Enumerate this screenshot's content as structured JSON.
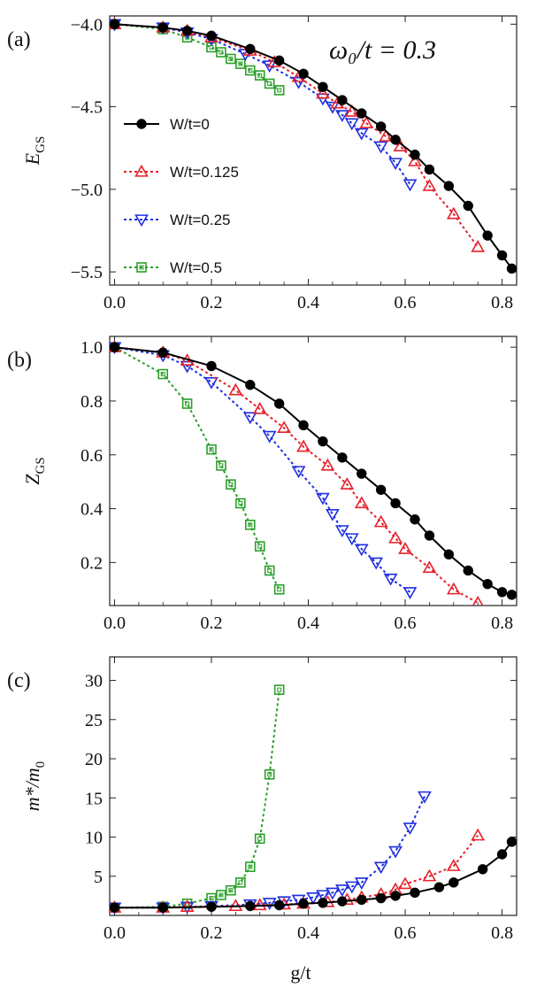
{
  "figure": {
    "xlabel": "g/t",
    "annotation": "ω₀/t = 0.3",
    "x_ticks": [
      0.0,
      0.2,
      0.4,
      0.6,
      0.8
    ],
    "x_tick_labels": [
      "0.0",
      "0.2",
      "0.4",
      "0.6",
      "0.8"
    ]
  },
  "series_styles": [
    {
      "name": "W/t=0",
      "color": "#000000",
      "marker": "circle",
      "dash": "solid"
    },
    {
      "name": "W/t=0.125",
      "color": "#e8202a",
      "marker": "triangle-up",
      "dash": "dotted"
    },
    {
      "name": "W/t=0.25",
      "color": "#1f2fe0",
      "marker": "triangle-down",
      "dash": "dotted"
    },
    {
      "name": "W/t=0.5",
      "color": "#2aa02a",
      "marker": "square",
      "dash": "dotted"
    }
  ],
  "chart_data": [
    {
      "type": "line",
      "panel_label": "(a)",
      "ylabel": "E",
      "ylabel_sub": "GS",
      "xlim": [
        -0.01,
        0.83
      ],
      "ylim": [
        -5.58,
        -3.95
      ],
      "y_ticks": [
        -4.0,
        -4.5,
        -5.0,
        -5.5
      ],
      "y_tick_labels": [
        "−4.0",
        "−4.5",
        "−5.0",
        "−5.5"
      ],
      "legend": [
        "W/t=0",
        "W/t=0.125",
        "W/t=0.25",
        "W/t=0.5"
      ],
      "series": [
        {
          "name": "W/t=0",
          "x": [
            0.0,
            0.1,
            0.15,
            0.2,
            0.28,
            0.34,
            0.39,
            0.43,
            0.47,
            0.51,
            0.55,
            0.58,
            0.62,
            0.65,
            0.69,
            0.73,
            0.77,
            0.8,
            0.82
          ],
          "y": [
            -4.0,
            -4.02,
            -4.04,
            -4.07,
            -4.15,
            -4.22,
            -4.3,
            -4.38,
            -4.46,
            -4.54,
            -4.62,
            -4.7,
            -4.79,
            -4.88,
            -4.98,
            -5.1,
            -5.28,
            -5.4,
            -5.48
          ]
        },
        {
          "name": "W/t=0.125",
          "x": [
            0.0,
            0.1,
            0.15,
            0.2,
            0.28,
            0.33,
            0.38,
            0.43,
            0.46,
            0.49,
            0.52,
            0.56,
            0.59,
            0.62,
            0.65,
            0.7,
            0.75
          ],
          "y": [
            -4.0,
            -4.02,
            -4.04,
            -4.08,
            -4.16,
            -4.23,
            -4.32,
            -4.42,
            -4.48,
            -4.53,
            -4.6,
            -4.68,
            -4.74,
            -4.83,
            -4.98,
            -5.15,
            -5.35
          ]
        },
        {
          "name": "W/t=0.25",
          "x": [
            0.0,
            0.1,
            0.15,
            0.2,
            0.27,
            0.32,
            0.38,
            0.43,
            0.45,
            0.47,
            0.49,
            0.51,
            0.55,
            0.58,
            0.61
          ],
          "y": [
            -4.0,
            -4.02,
            -4.05,
            -4.09,
            -4.18,
            -4.25,
            -4.35,
            -4.45,
            -4.5,
            -4.55,
            -4.6,
            -4.66,
            -4.74,
            -4.84,
            -4.97
          ]
        },
        {
          "name": "W/t=0.5",
          "x": [
            0.0,
            0.1,
            0.15,
            0.2,
            0.22,
            0.24,
            0.26,
            0.28,
            0.3,
            0.32,
            0.34
          ],
          "y": [
            -4.0,
            -4.03,
            -4.08,
            -4.14,
            -4.17,
            -4.21,
            -4.24,
            -4.28,
            -4.31,
            -4.36,
            -4.4
          ]
        }
      ]
    },
    {
      "type": "line",
      "panel_label": "(b)",
      "ylabel": "Z",
      "ylabel_sub": "GS",
      "xlim": [
        -0.01,
        0.83
      ],
      "ylim": [
        0.04,
        1.04
      ],
      "y_ticks": [
        0.2,
        0.4,
        0.6,
        0.8,
        1.0
      ],
      "y_tick_labels": [
        "0.2",
        "0.4",
        "0.6",
        "0.8",
        "1.0"
      ],
      "series": [
        {
          "name": "W/t=0",
          "x": [
            0.0,
            0.1,
            0.2,
            0.28,
            0.34,
            0.39,
            0.43,
            0.47,
            0.51,
            0.55,
            0.58,
            0.62,
            0.65,
            0.69,
            0.73,
            0.77,
            0.8,
            0.82
          ],
          "y": [
            1.0,
            0.98,
            0.93,
            0.86,
            0.79,
            0.71,
            0.65,
            0.59,
            0.53,
            0.47,
            0.42,
            0.36,
            0.3,
            0.23,
            0.17,
            0.12,
            0.09,
            0.08
          ]
        },
        {
          "name": "W/t=0.125",
          "x": [
            0.0,
            0.1,
            0.15,
            0.25,
            0.3,
            0.35,
            0.39,
            0.44,
            0.48,
            0.51,
            0.55,
            0.58,
            0.6,
            0.65,
            0.7,
            0.75
          ],
          "y": [
            1.0,
            0.98,
            0.95,
            0.84,
            0.77,
            0.7,
            0.63,
            0.56,
            0.49,
            0.42,
            0.35,
            0.29,
            0.25,
            0.18,
            0.1,
            0.05
          ]
        },
        {
          "name": "W/t=0.25",
          "x": [
            0.0,
            0.1,
            0.15,
            0.2,
            0.28,
            0.32,
            0.38,
            0.43,
            0.45,
            0.47,
            0.49,
            0.51,
            0.54,
            0.57,
            0.61
          ],
          "y": [
            1.0,
            0.97,
            0.93,
            0.87,
            0.74,
            0.67,
            0.54,
            0.44,
            0.38,
            0.32,
            0.29,
            0.25,
            0.2,
            0.14,
            0.09
          ]
        },
        {
          "name": "W/t=0.5",
          "x": [
            0.0,
            0.1,
            0.15,
            0.2,
            0.22,
            0.24,
            0.26,
            0.28,
            0.3,
            0.32,
            0.34
          ],
          "y": [
            1.0,
            0.9,
            0.79,
            0.62,
            0.56,
            0.49,
            0.42,
            0.34,
            0.26,
            0.17,
            0.1
          ]
        }
      ]
    },
    {
      "type": "line",
      "panel_label": "(c)",
      "ylabel": "m*/m",
      "ylabel_sub": "0",
      "xlim": [
        -0.01,
        0.83
      ],
      "ylim": [
        0.0,
        33.0
      ],
      "y_ticks": [
        5,
        10,
        15,
        20,
        25,
        30
      ],
      "y_tick_labels": [
        "5",
        "10",
        "15",
        "20",
        "25",
        "30"
      ],
      "series": [
        {
          "name": "W/t=0",
          "x": [
            0.0,
            0.1,
            0.2,
            0.28,
            0.34,
            0.39,
            0.43,
            0.47,
            0.51,
            0.55,
            0.58,
            0.62,
            0.67,
            0.7,
            0.76,
            0.8,
            0.82
          ],
          "y": [
            1.0,
            1.0,
            1.1,
            1.2,
            1.3,
            1.5,
            1.6,
            1.8,
            2.0,
            2.2,
            2.5,
            2.9,
            3.6,
            4.2,
            5.9,
            7.8,
            9.4
          ]
        },
        {
          "name": "W/t=0.125",
          "x": [
            0.0,
            0.1,
            0.15,
            0.25,
            0.3,
            0.35,
            0.39,
            0.44,
            0.48,
            0.51,
            0.55,
            0.58,
            0.6,
            0.65,
            0.7,
            0.75
          ],
          "y": [
            1.0,
            1.0,
            1.1,
            1.2,
            1.3,
            1.4,
            1.5,
            1.7,
            2.0,
            2.3,
            2.7,
            3.3,
            4.0,
            5.0,
            6.3,
            10.2
          ]
        },
        {
          "name": "W/t=0.25",
          "x": [
            0.0,
            0.1,
            0.15,
            0.2,
            0.28,
            0.32,
            0.35,
            0.38,
            0.41,
            0.43,
            0.45,
            0.47,
            0.49,
            0.51,
            0.55,
            0.58,
            0.61,
            0.64
          ],
          "y": [
            1.0,
            1.0,
            1.1,
            1.2,
            1.4,
            1.6,
            1.8,
            2.0,
            2.3,
            2.6,
            2.9,
            3.3,
            3.7,
            4.2,
            6.2,
            8.2,
            11.2,
            15.2
          ]
        },
        {
          "name": "W/t=0.5",
          "x": [
            0.0,
            0.1,
            0.15,
            0.2,
            0.22,
            0.24,
            0.26,
            0.28,
            0.3,
            0.32,
            0.34
          ],
          "y": [
            1.0,
            1.1,
            1.5,
            2.2,
            2.6,
            3.2,
            4.2,
            6.2,
            9.8,
            18.0,
            28.8
          ]
        }
      ]
    }
  ]
}
